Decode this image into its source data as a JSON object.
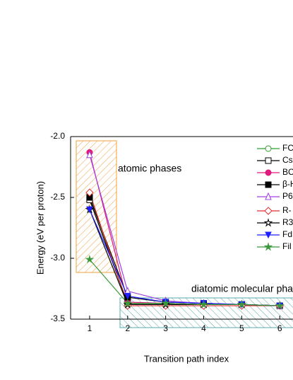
{
  "chart_data": {
    "type": "line",
    "x_label": "Transition path index",
    "y_label": "Energy (eV per proton)",
    "annotations": [
      "atomic phases",
      "diatomic molecular pha"
    ],
    "x": [
      1,
      2,
      3,
      4,
      5,
      6
    ],
    "xlim": [
      0.5,
      7.5
    ],
    "xticks": [
      1,
      2,
      3,
      4,
      5,
      6
    ],
    "ylim": [
      -3.5,
      -2.0
    ],
    "yticks": [
      {
        "value": -2.0,
        "label": "-2.0"
      },
      {
        "value": -2.5,
        "label": "-2.5"
      },
      {
        "value": -3.0,
        "label": "-3.0"
      },
      {
        "value": -3.5,
        "label": "-3.5"
      }
    ],
    "series": [
      {
        "name": "FC",
        "color": "#2ca02c",
        "marker": "circle-open",
        "values": [
          -2.48,
          -3.38,
          -3.38,
          -3.38,
          -3.38,
          -3.39
        ]
      },
      {
        "name": "Cs",
        "color": "#000000",
        "marker": "square-open",
        "values": [
          -2.52,
          -3.37,
          -3.37,
          -3.38,
          -3.38,
          -3.39
        ]
      },
      {
        "name": "BC",
        "color": "#e0197a",
        "marker": "circle-filled",
        "values": [
          -2.13,
          -3.36,
          -3.37,
          -3.38,
          -3.38,
          -3.39
        ]
      },
      {
        "name": "β-H",
        "color": "#000000",
        "marker": "square-filled",
        "values": [
          -2.5,
          -3.32,
          -3.36,
          -3.37,
          -3.38,
          -3.39
        ]
      },
      {
        "name": "P6",
        "color": "#a040e0",
        "marker": "triangle-open",
        "values": [
          -2.15,
          -3.27,
          -3.35,
          -3.37,
          -3.38,
          -3.39
        ]
      },
      {
        "name": "R-",
        "color": "#e03030",
        "marker": "diamond-open",
        "values": [
          -2.46,
          -3.39,
          -3.39,
          -3.39,
          -3.39,
          -3.39
        ]
      },
      {
        "name": "R3",
        "color": "#000000",
        "marker": "star-open",
        "values": [
          -2.6,
          -3.38,
          -3.38,
          -3.38,
          -3.38,
          -3.39
        ]
      },
      {
        "name": "Fd",
        "color": "#1f1fff",
        "marker": "triangle-down-filled",
        "values": [
          -2.6,
          -3.31,
          -3.36,
          -3.37,
          -3.38,
          -3.39
        ]
      },
      {
        "name": "Fil",
        "color": "#3a9a3a",
        "marker": "star-filled",
        "values": [
          -3.01,
          -3.37,
          -3.37,
          -3.38,
          -3.38,
          -3.39
        ]
      }
    ]
  }
}
